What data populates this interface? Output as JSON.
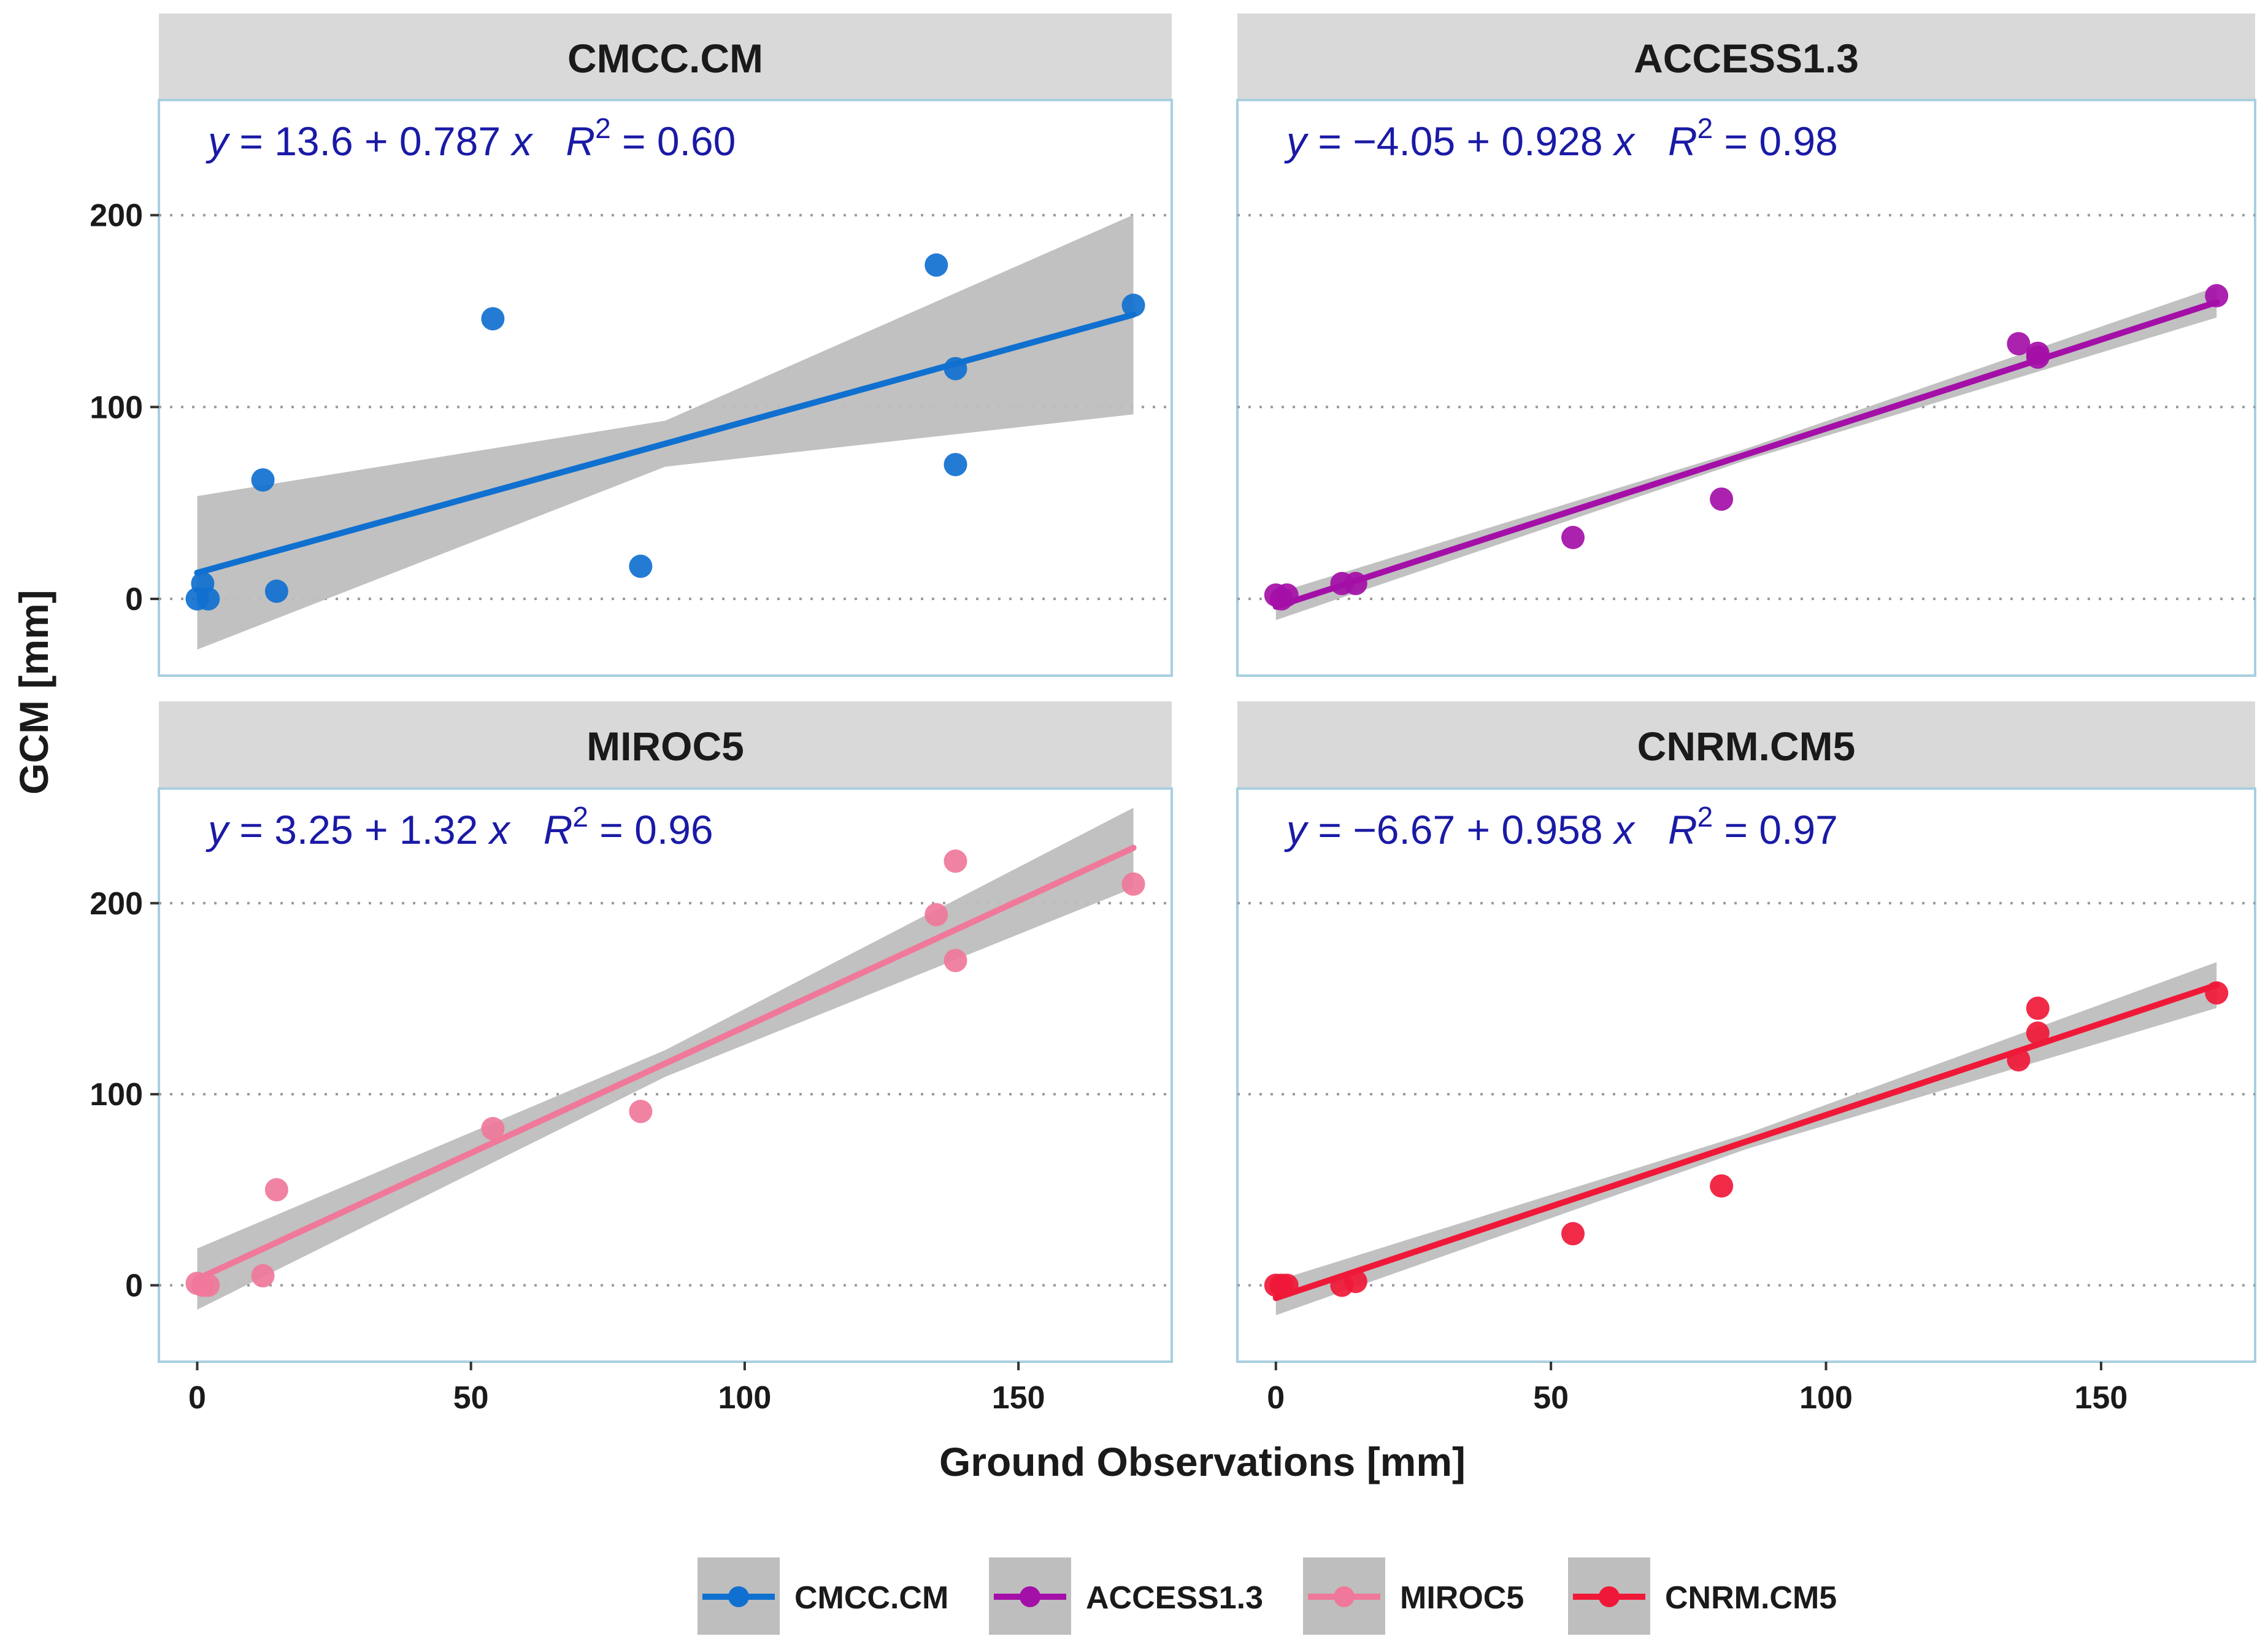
{
  "chart_data": {
    "type": "scatter",
    "layout": "facet-grid-2x2",
    "xlabel": "Ground Observations [mm]",
    "ylabel": "GCM [mm]",
    "xlim": [
      -7,
      178
    ],
    "ylim": [
      -40,
      260
    ],
    "x_ticks": [
      0,
      50,
      100,
      150
    ],
    "y_ticks": [
      0,
      100,
      200
    ],
    "grid": "horizontal dotted at y ticks",
    "confidence_band_color": "#bebebe",
    "legend_position": "bottom",
    "x": [
      0,
      1,
      2,
      12,
      14.5,
      54,
      81,
      135,
      138.5,
      138.5,
      171
    ],
    "panels": [
      {
        "name": "CMCC.CM",
        "color": "#1070d0",
        "equation": {
          "y": "y",
          "eq": " = 13.6 + 0.787 ",
          "x": "x",
          "r": "R",
          "exp": "2",
          "r2": " = 0.60"
        },
        "intercept": 13.6,
        "slope": 0.787,
        "r2": 0.6,
        "band_halfwidth": [
          40,
          12,
          52
        ],
        "y": [
          0,
          8,
          0,
          62,
          4,
          146,
          17,
          174,
          120,
          70,
          153
        ]
      },
      {
        "name": "ACCESS1.3",
        "color": "#a40fa8",
        "equation": {
          "y": "y",
          "eq": " = −4.05 + 0.928 ",
          "x": "x",
          "r": "R",
          "exp": "2",
          "r2": " = 0.98"
        },
        "intercept": -4.05,
        "slope": 0.928,
        "r2": 0.98,
        "band_halfwidth": [
          7,
          3,
          8
        ],
        "y": [
          2,
          0,
          2,
          8,
          8,
          32,
          52,
          133,
          128,
          126,
          158
        ]
      },
      {
        "name": "MIROC5",
        "color": "#f0789a",
        "equation": {
          "y": "y",
          "eq": " = 3.25 + 1.32 ",
          "x": "x",
          "r": "R",
          "exp": "2",
          "r2": " = 0.96"
        },
        "intercept": 3.25,
        "slope": 1.32,
        "r2": 0.96,
        "band_halfwidth": [
          16,
          7,
          21
        ],
        "y": [
          1,
          0,
          0,
          5,
          50,
          82,
          91,
          194,
          222,
          170,
          210
        ]
      },
      {
        "name": "CNRM.CM5",
        "color": "#f01838",
        "equation": {
          "y": "y",
          "eq": " = −6.67 + 0.958 ",
          "x": "x",
          "r": "R",
          "exp": "2",
          "r2": " = 0.97"
        },
        "intercept": -6.67,
        "slope": 0.958,
        "r2": 0.97,
        "band_halfwidth": [
          9,
          4,
          12
        ],
        "y": [
          0,
          0,
          0,
          0,
          2,
          27,
          52,
          118,
          145,
          132,
          153
        ]
      }
    ],
    "legend": [
      "CMCC.CM",
      "ACCESS1.3",
      "MIROC5",
      "CNRM.CM5"
    ]
  }
}
